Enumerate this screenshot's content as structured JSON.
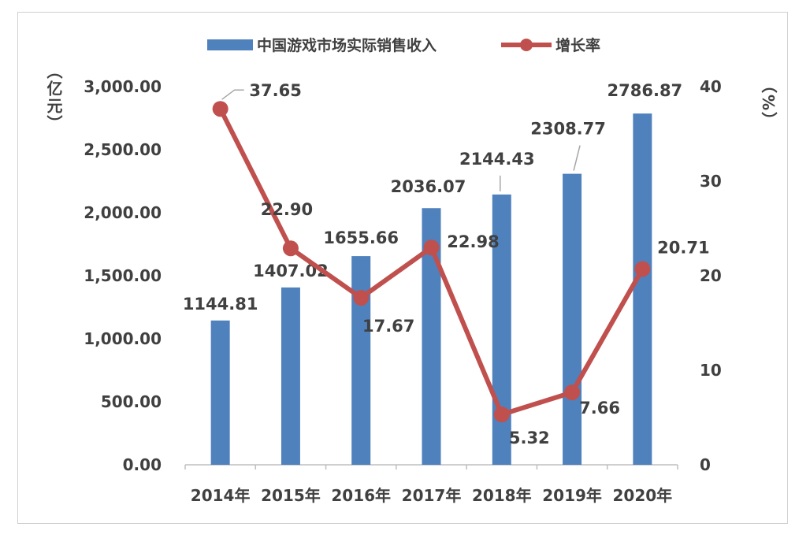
{
  "chart_data": {
    "type": "bar+line",
    "categories": [
      "2014年",
      "2015年",
      "2016年",
      "2017年",
      "2018年",
      "2019年",
      "2020年"
    ],
    "series": [
      {
        "name": "中国游戏市场实际销售收入",
        "type": "bar",
        "axis": "left",
        "color": "#4f81bd",
        "values": [
          1144.81,
          1407.02,
          1655.66,
          2036.07,
          2144.43,
          2308.77,
          2786.87
        ],
        "labels": [
          "1144.81",
          "1407.02",
          "1655.66",
          "2036.07",
          "2144.43",
          "2308.77",
          "2786.87"
        ]
      },
      {
        "name": "增长率",
        "type": "line",
        "axis": "right",
        "color": "#c0504d",
        "values": [
          37.65,
          22.9,
          17.67,
          22.98,
          5.32,
          7.66,
          20.71
        ],
        "labels": [
          "37.65",
          "22.90",
          "17.67",
          "22.98",
          "5.32",
          "7.66",
          "20.71"
        ]
      }
    ],
    "left_axis": {
      "label": "（亿元）",
      "label_chars": [
        "（",
        "亿",
        "元",
        "）"
      ],
      "range": [
        0,
        3000
      ],
      "ticks": [
        "0.00",
        "500.00",
        "1,000.00",
        "1,500.00",
        "2,000.00",
        "2,500.00",
        "3,000.00"
      ]
    },
    "right_axis": {
      "label": "（%）",
      "label_chars": [
        "%",
        "（",
        "）"
      ],
      "range": [
        0,
        40
      ],
      "ticks": [
        "0",
        "10",
        "20",
        "30",
        "40"
      ]
    },
    "legend": "top",
    "grid": false
  }
}
